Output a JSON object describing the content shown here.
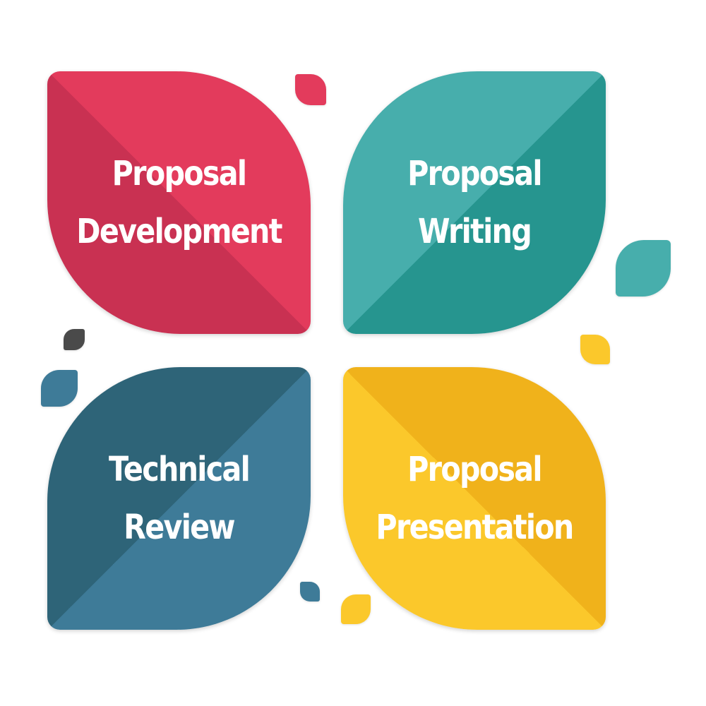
{
  "quadrants": [
    {
      "id": "proposal-development",
      "lines": [
        "Proposal",
        "Development"
      ],
      "color_light": "#e33b5c",
      "color_dark": "#c93152"
    },
    {
      "id": "proposal-writing",
      "lines": [
        "Proposal",
        "Writing"
      ],
      "color_light": "#47aeac",
      "color_dark": "#26958f"
    },
    {
      "id": "technical-review",
      "lines": [
        "Technical",
        "Review"
      ],
      "color_light": "#3e7b98",
      "color_dark": "#2e6478"
    },
    {
      "id": "proposal-presentation",
      "lines": [
        "Proposal",
        "Presentation"
      ],
      "color_light": "#fbc82b",
      "color_dark": "#f0b21b"
    }
  ],
  "accent_dots": {
    "red": "#e33b5c",
    "teal": "#47aeac",
    "dark": "#4a4a4a",
    "blue": "#3e7b98",
    "yellow": "#fbc82b"
  }
}
